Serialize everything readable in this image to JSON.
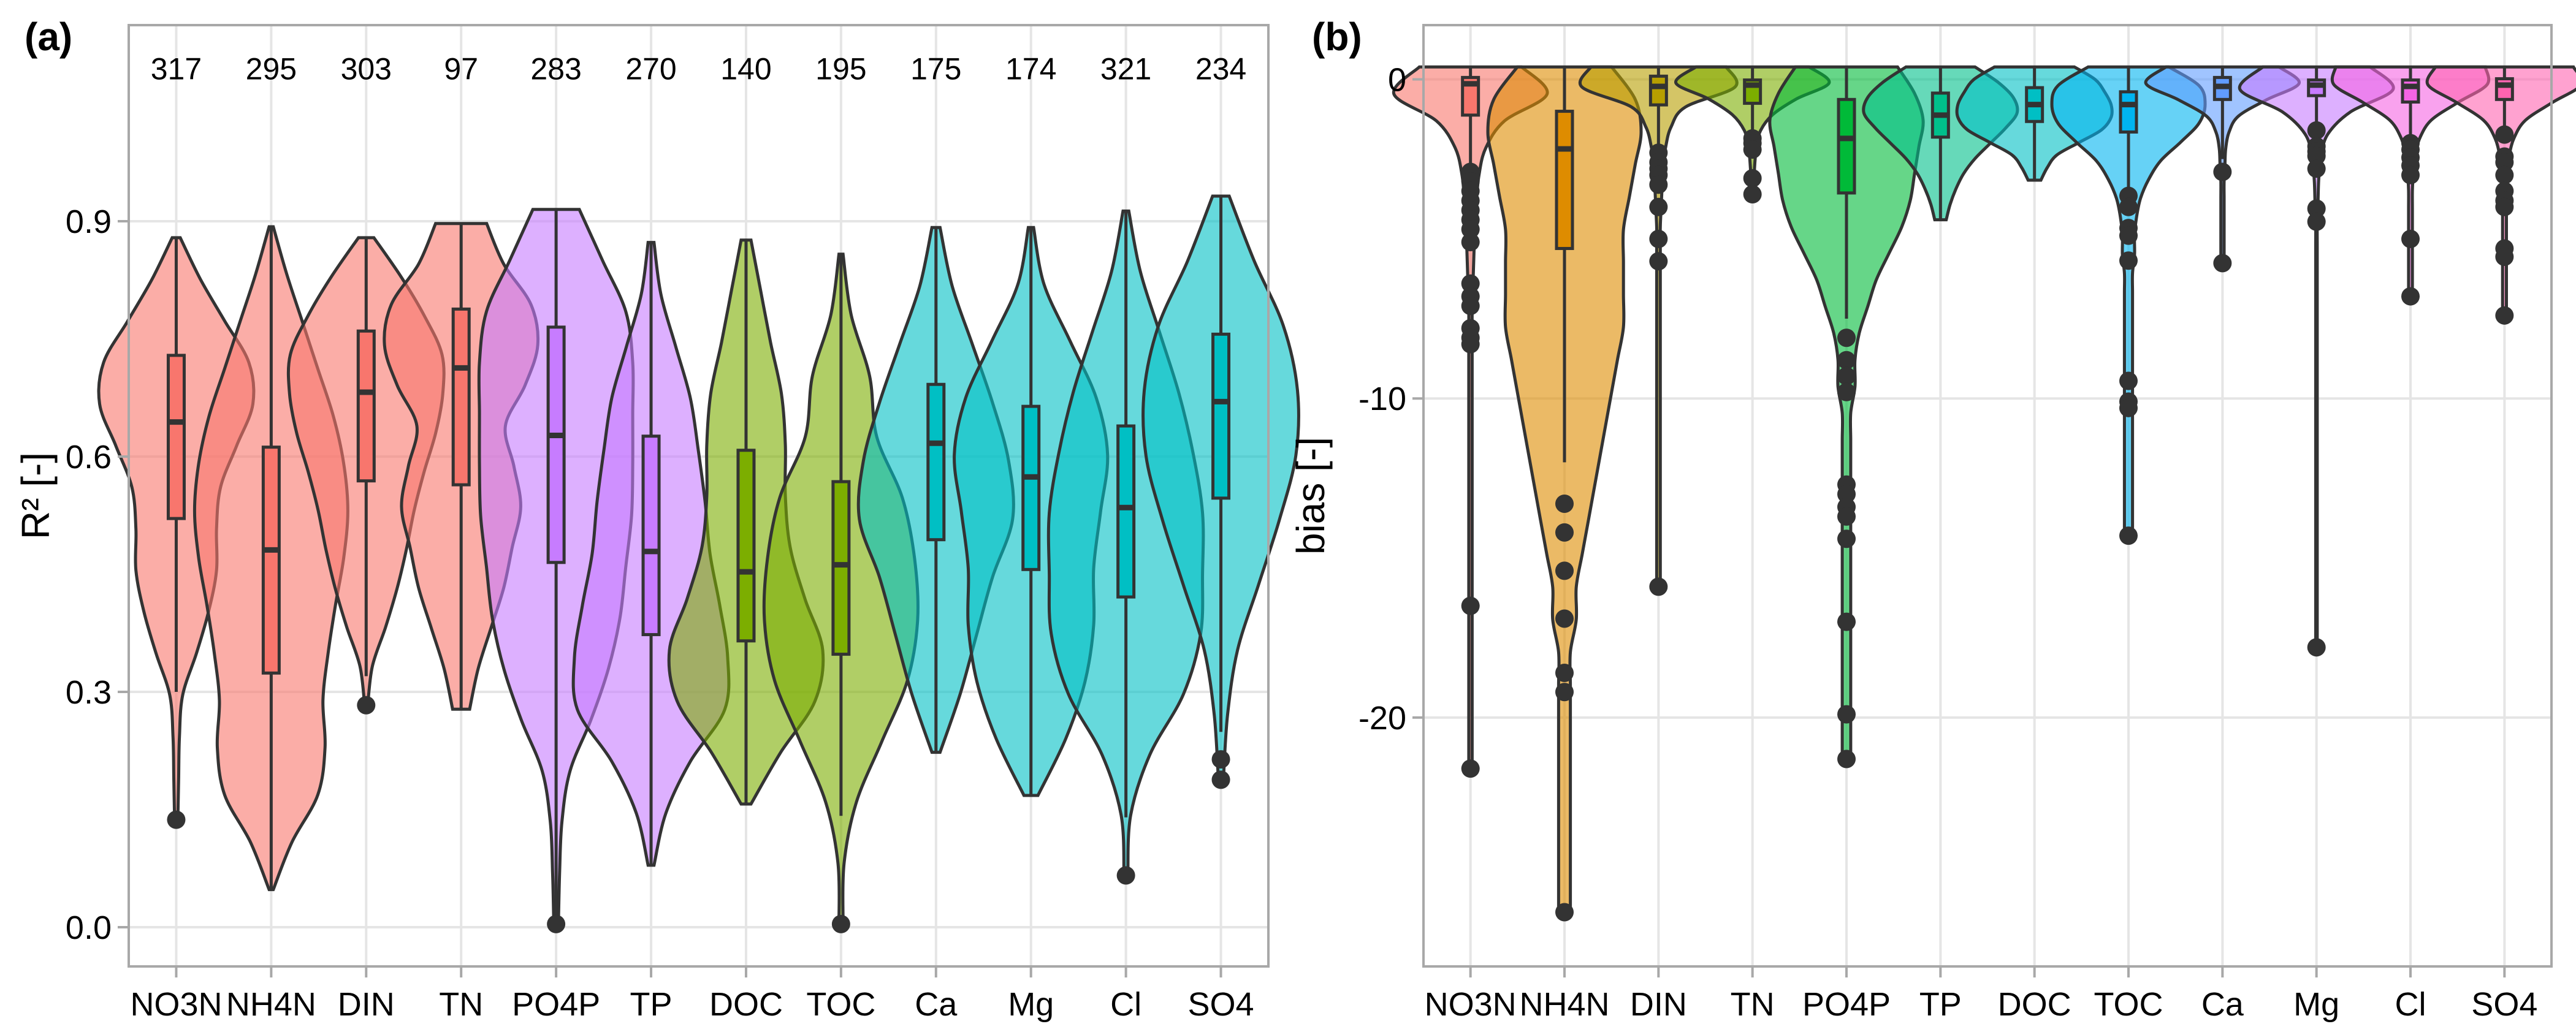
{
  "figure": {
    "panels": [
      "(a)",
      "(b)"
    ]
  },
  "chart_data": [
    {
      "panel_label": "(a)",
      "type": "violin",
      "title": "",
      "xlabel": "",
      "ylabel": "R² [-]",
      "ylim": [
        -0.05,
        1.15
      ],
      "yticks": [
        0.0,
        0.3,
        0.6,
        0.9
      ],
      "ytick_labels": [
        "0.0",
        "0.3",
        "0.6",
        "0.9"
      ],
      "grid": true,
      "categories": [
        "NO3N",
        "NH4N",
        "DIN",
        "TN",
        "PO4P",
        "TP",
        "DOC",
        "TOC",
        "Ca",
        "Mg",
        "Cl",
        "SO4"
      ],
      "counts": [
        "317",
        "295",
        "303",
        "97",
        "283",
        "270",
        "140",
        "195",
        "175",
        "174",
        "321",
        "234"
      ],
      "count_y": 1.095,
      "violin_alpha": 0.6,
      "series": [
        {
          "name": "NO3N",
          "color": "#F8766D",
          "vmin": 0.137,
          "vmax": 0.879,
          "whisker_low": 0.3,
          "q1": 0.521,
          "median": 0.644,
          "q3": 0.729,
          "whisker_high": 0.879,
          "outliers": [
            0.137
          ],
          "density": [
            0.02,
            0.03,
            0.04,
            0.08,
            0.25,
            0.4,
            0.5,
            0.5,
            0.55,
            0.75,
            0.95,
            0.9,
            0.6,
            0.3,
            0.05
          ]
        },
        {
          "name": "NH4N",
          "color": "#F8766D",
          "vmin": 0.048,
          "vmax": 0.893,
          "whisker_low": 0.048,
          "q1": 0.324,
          "median": 0.481,
          "q3": 0.612,
          "whisker_high": 0.893,
          "outliers": [],
          "density": [
            0.02,
            0.2,
            0.45,
            0.52,
            0.5,
            0.55,
            0.62,
            0.7,
            0.74,
            0.7,
            0.6,
            0.45,
            0.3,
            0.15,
            0.02
          ]
        },
        {
          "name": "DIN",
          "color": "#F8766D",
          "vmin": 0.283,
          "vmax": 0.879,
          "whisker_low": 0.32,
          "q1": 0.569,
          "median": 0.682,
          "q3": 0.76,
          "whisker_high": 0.879,
          "outliers": [
            0.283
          ],
          "density": [
            0.02,
            0.08,
            0.25,
            0.4,
            0.52,
            0.62,
            0.75,
            0.9,
            0.99,
            0.98,
            0.75,
            0.45,
            0.1
          ]
        },
        {
          "name": "TN",
          "color": "#F8766D",
          "vmin": 0.278,
          "vmax": 0.897,
          "whisker_low": 0.278,
          "q1": 0.564,
          "median": 0.713,
          "q3": 0.788,
          "whisker_high": 0.897,
          "outliers": [],
          "density": [
            0.1,
            0.2,
            0.35,
            0.5,
            0.6,
            0.7,
            0.62,
            0.52,
            0.75,
            0.9,
            0.82,
            0.5,
            0.3
          ]
        },
        {
          "name": "PO4P",
          "color": "#C77CFF",
          "vmin": 0.004,
          "vmax": 0.915,
          "whisker_low": 0.004,
          "q1": 0.465,
          "median": 0.627,
          "q3": 0.765,
          "whisker_high": 0.915,
          "outliers": [
            0.004
          ],
          "density": [
            0.02,
            0.03,
            0.05,
            0.12,
            0.3,
            0.45,
            0.55,
            0.6,
            0.65,
            0.66,
            0.66,
            0.66,
            0.6,
            0.4,
            0.2
          ]
        },
        {
          "name": "TP",
          "color": "#C77CFF",
          "vmin": 0.079,
          "vmax": 0.873,
          "whisker_low": 0.079,
          "q1": 0.373,
          "median": 0.479,
          "q3": 0.626,
          "whisker_high": 0.873,
          "outliers": [],
          "density": [
            0.03,
            0.15,
            0.4,
            0.75,
            0.78,
            0.7,
            0.6,
            0.55,
            0.48,
            0.4,
            0.25,
            0.1,
            0.03
          ]
        },
        {
          "name": "DOC",
          "color": "#7CAE00",
          "vmin": 0.157,
          "vmax": 0.876,
          "whisker_low": 0.157,
          "q1": 0.365,
          "median": 0.453,
          "q3": 0.608,
          "whisker_high": 0.876,
          "outliers": [],
          "density": [
            0.05,
            0.35,
            0.7,
            0.78,
            0.6,
            0.45,
            0.4,
            0.4,
            0.36,
            0.25,
            0.15,
            0.05
          ]
        },
        {
          "name": "TOC",
          "color": "#7CAE00",
          "vmin": 0.004,
          "vmax": 0.858,
          "whisker_low": 0.142,
          "q1": 0.348,
          "median": 0.462,
          "q3": 0.568,
          "whisker_high": 0.858,
          "outliers": [
            0.004
          ],
          "density": [
            0.02,
            0.03,
            0.15,
            0.4,
            0.65,
            0.75,
            0.72,
            0.6,
            0.35,
            0.28,
            0.1,
            0.02
          ]
        },
        {
          "name": "Ca",
          "color": "#00BFC4",
          "vmin": 0.223,
          "vmax": 0.892,
          "whisker_low": 0.223,
          "q1": 0.494,
          "median": 0.617,
          "q3": 0.692,
          "whisker_high": 0.892,
          "outliers": [],
          "density": [
            0.05,
            0.3,
            0.5,
            0.7,
            0.95,
            0.9,
            0.7,
            0.45,
            0.2,
            0.05
          ]
        },
        {
          "name": "Mg",
          "color": "#00BFC4",
          "vmin": 0.168,
          "vmax": 0.892,
          "whisker_low": 0.168,
          "q1": 0.456,
          "median": 0.574,
          "q3": 0.664,
          "whisker_high": 0.892,
          "outliers": [],
          "density": [
            0.08,
            0.4,
            0.62,
            0.72,
            0.72,
            0.8,
            0.88,
            0.75,
            0.45,
            0.15,
            0.03
          ]
        },
        {
          "name": "Cl",
          "color": "#00BFC4",
          "vmin": 0.066,
          "vmax": 0.913,
          "whisker_low": 0.14,
          "q1": 0.421,
          "median": 0.535,
          "q3": 0.639,
          "whisker_high": 0.913,
          "outliers": [
            0.066
          ],
          "density": [
            0.02,
            0.05,
            0.25,
            0.6,
            0.78,
            0.8,
            0.8,
            0.7,
            0.55,
            0.35,
            0.15,
            0.03
          ]
        },
        {
          "name": "SO4",
          "color": "#00BFC4",
          "vmin": 0.188,
          "vmax": 0.932,
          "whisker_low": 0.249,
          "q1": 0.547,
          "median": 0.67,
          "q3": 0.756,
          "whisker_high": 0.932,
          "outliers": [
            0.214,
            0.188
          ],
          "density": [
            0.03,
            0.08,
            0.2,
            0.45,
            0.7,
            0.9,
            0.92,
            0.75,
            0.4,
            0.1
          ]
        }
      ]
    },
    {
      "panel_label": "(b)",
      "type": "violin",
      "title": "",
      "xlabel": "",
      "ylabel": "bias [-]",
      "ylim": [
        -27.8,
        1.7
      ],
      "yticks": [
        0,
        -10,
        -20
      ],
      "ytick_labels": [
        "0",
        "-10",
        "-20"
      ],
      "grid": true,
      "categories": [
        "NO3N",
        "NH4N",
        "DIN",
        "TN",
        "PO4P",
        "TP",
        "DOC",
        "TOC",
        "Ca",
        "Mg",
        "Cl",
        "SO4"
      ],
      "violin_alpha": 0.6,
      "series": [
        {
          "name": "NO3N",
          "color": "#F8766D",
          "vmin": -21.6,
          "vmax": 0.39,
          "whisker_low": -2.8,
          "q1": -1.12,
          "median": -0.14,
          "q3": 0.06,
          "whisker_high": 0.39,
          "outliers": [
            -2.9,
            -3.2,
            -3.5,
            -3.8,
            -4.1,
            -4.4,
            -4.7,
            -5.1,
            -6.4,
            -6.8,
            -7.1,
            -7.8,
            -8.1,
            -8.3,
            -16.5,
            -21.6
          ],
          "density": [
            0.02,
            0.02,
            0.02,
            0.02,
            0.02,
            0.02,
            0.02,
            0.02,
            0.02,
            0.02,
            0.02,
            0.02,
            0.02,
            0.02,
            0.02,
            0.02,
            0.02,
            0.02,
            0.03,
            0.04,
            0.05,
            0.07,
            0.1,
            0.18,
            0.4,
            0.9,
            0.6
          ]
        },
        {
          "name": "NH4N",
          "color": "#DE8C00",
          "vmin": -26.1,
          "vmax": 0.39,
          "whisker_low": -12.0,
          "q1": -5.3,
          "median": -2.18,
          "q3": -1.0,
          "whisker_high": 0.39,
          "outliers": [
            -13.3,
            -14.2,
            -15.4,
            -16.9,
            -18.6,
            -19.2,
            -26.1
          ],
          "density": [
            0.01,
            0.01,
            0.01,
            0.01,
            0.01,
            0.01,
            0.01,
            0.01,
            0.01,
            0.02,
            0.02,
            0.03,
            0.04,
            0.05,
            0.06,
            0.07,
            0.08,
            0.09,
            0.1,
            0.1,
            0.1,
            0.1,
            0.11,
            0.12,
            0.13,
            0.12,
            0.08
          ]
        },
        {
          "name": "DIN",
          "color": "#B79F00",
          "vmin": -15.9,
          "vmax": 0.39,
          "whisker_low": -2.2,
          "q1": -0.8,
          "median": -0.22,
          "q3": 0.1,
          "whisker_high": 0.39,
          "outliers": [
            -2.3,
            -2.6,
            -2.8,
            -3.0,
            -3.3,
            -4.0,
            -5.0,
            -5.7,
            -15.9
          ],
          "density": [
            0.02,
            0.02,
            0.02,
            0.02,
            0.02,
            0.02,
            0.02,
            0.02,
            0.02,
            0.02,
            0.02,
            0.02,
            0.02,
            0.02,
            0.02,
            0.02,
            0.02,
            0.02,
            0.02,
            0.03,
            0.04,
            0.05,
            0.08,
            0.14,
            0.3,
            0.85,
            0.75
          ]
        },
        {
          "name": "TN",
          "color": "#7CAE00",
          "vmin": -3.6,
          "vmax": 0.39,
          "whisker_low": -1.8,
          "q1": -0.75,
          "median": -0.18,
          "q3": -0.02,
          "whisker_high": 0.39,
          "outliers": [
            -1.85,
            -2.0,
            -2.2,
            -3.1,
            -3.6
          ],
          "density": [
            0.02,
            0.02,
            0.03,
            0.05,
            0.1,
            0.25,
            0.55,
            0.95,
            0.7
          ]
        },
        {
          "name": "PO4P",
          "color": "#00BA38",
          "vmin": -21.3,
          "vmax": 0.39,
          "whisker_low": -7.5,
          "q1": -3.56,
          "median": -1.85,
          "q3": -0.63,
          "whisker_high": 0.39,
          "outliers": [
            -8.1,
            -8.8,
            -9.3,
            -9.8,
            -12.7,
            -13.0,
            -13.4,
            -13.7,
            -14.4,
            -17.0,
            -19.9,
            -21.3
          ],
          "density": [
            0.01,
            0.01,
            0.01,
            0.01,
            0.01,
            0.01,
            0.01,
            0.01,
            0.01,
            0.01,
            0.01,
            0.01,
            0.01,
            0.01,
            0.02,
            0.02,
            0.03,
            0.05,
            0.07,
            0.1,
            0.13,
            0.15,
            0.16,
            0.17,
            0.18,
            0.16,
            0.12
          ]
        },
        {
          "name": "TP",
          "color": "#00C08B",
          "vmin": -4.4,
          "vmax": 0.39,
          "whisker_low": -4.4,
          "q1": -1.81,
          "median": -1.12,
          "q3": -0.43,
          "whisker_high": 0.39,
          "outliers": [],
          "density": [
            0.03,
            0.05,
            0.08,
            0.12,
            0.18,
            0.26,
            0.34,
            0.4,
            0.38,
            0.3,
            0.18
          ]
        },
        {
          "name": "DOC",
          "color": "#00BFC4",
          "vmin": -3.16,
          "vmax": 0.39,
          "whisker_low": -3.16,
          "q1": -1.32,
          "median": -0.79,
          "q3": -0.26,
          "whisker_high": 0.39,
          "outliers": [],
          "density": [
            0.04,
            0.08,
            0.14,
            0.28,
            0.42,
            0.48,
            0.48,
            0.44,
            0.38,
            0.25
          ]
        },
        {
          "name": "TOC",
          "color": "#00B4F0",
          "vmin": -14.3,
          "vmax": 0.39,
          "whisker_low": -3.4,
          "q1": -1.65,
          "median": -0.79,
          "q3": -0.39,
          "whisker_high": 0.39,
          "outliers": [
            -3.65,
            -4.0,
            -4.66,
            -4.9,
            -5.68,
            -9.45,
            -10.1,
            -10.3,
            -14.3
          ],
          "density": [
            0.02,
            0.02,
            0.02,
            0.02,
            0.02,
            0.02,
            0.02,
            0.02,
            0.02,
            0.02,
            0.02,
            0.02,
            0.02,
            0.02,
            0.02,
            0.03,
            0.03,
            0.04,
            0.06,
            0.1,
            0.16,
            0.26,
            0.35,
            0.38,
            0.35,
            0.2
          ]
        },
        {
          "name": "Ca",
          "color": "#619CFF",
          "vmin": -5.76,
          "vmax": 0.39,
          "whisker_low": -2.5,
          "q1": -0.63,
          "median": -0.22,
          "q3": 0.06,
          "whisker_high": 0.39,
          "outliers": [
            -2.9,
            -5.76
          ],
          "density": [
            0.02,
            0.02,
            0.02,
            0.02,
            0.02,
            0.02,
            0.03,
            0.04,
            0.08,
            0.2,
            0.55,
            0.95,
            0.7
          ]
        },
        {
          "name": "Mg",
          "color": "#C77CFF",
          "vmin": -17.8,
          "vmax": 0.39,
          "whisker_low": -1.5,
          "q1": -0.51,
          "median": -0.18,
          "q3": -0.02,
          "whisker_high": 0.39,
          "outliers": [
            -1.6,
            -2.1,
            -2.26,
            -2.4,
            -2.8,
            -4.05,
            -4.46,
            -17.8
          ],
          "density": [
            0.01,
            0.01,
            0.01,
            0.01,
            0.01,
            0.01,
            0.01,
            0.01,
            0.01,
            0.01,
            0.01,
            0.01,
            0.01,
            0.01,
            0.01,
            0.01,
            0.01,
            0.01,
            0.01,
            0.01,
            0.02,
            0.03,
            0.06,
            0.15,
            0.45,
            1.0,
            0.7
          ]
        },
        {
          "name": "Cl",
          "color": "#F564E3",
          "vmin": -6.8,
          "vmax": 0.39,
          "whisker_low": -1.9,
          "q1": -0.71,
          "median": -0.22,
          "q3": -0.02,
          "whisker_high": 0.39,
          "outliers": [
            -2.0,
            -2.2,
            -2.45,
            -2.7,
            -3.0,
            -5.0,
            -6.8
          ],
          "density": [
            0.02,
            0.02,
            0.02,
            0.02,
            0.02,
            0.02,
            0.02,
            0.03,
            0.05,
            0.1,
            0.22,
            0.5,
            0.8,
            0.78
          ]
        },
        {
          "name": "SO4",
          "color": "#FF64B0",
          "vmin": -7.4,
          "vmax": 0.39,
          "whisker_low": -1.6,
          "q1": -0.63,
          "median": -0.18,
          "q3": 0.02,
          "whisker_high": 0.39,
          "outliers": [
            -1.73,
            -2.42,
            -2.6,
            -3.0,
            -3.5,
            -3.8,
            -4.0,
            -5.3,
            -5.56,
            -7.4
          ],
          "density": [
            0.02,
            0.02,
            0.02,
            0.02,
            0.02,
            0.02,
            0.02,
            0.02,
            0.03,
            0.05,
            0.1,
            0.22,
            0.5,
            0.8,
            0.72
          ]
        }
      ]
    }
  ]
}
